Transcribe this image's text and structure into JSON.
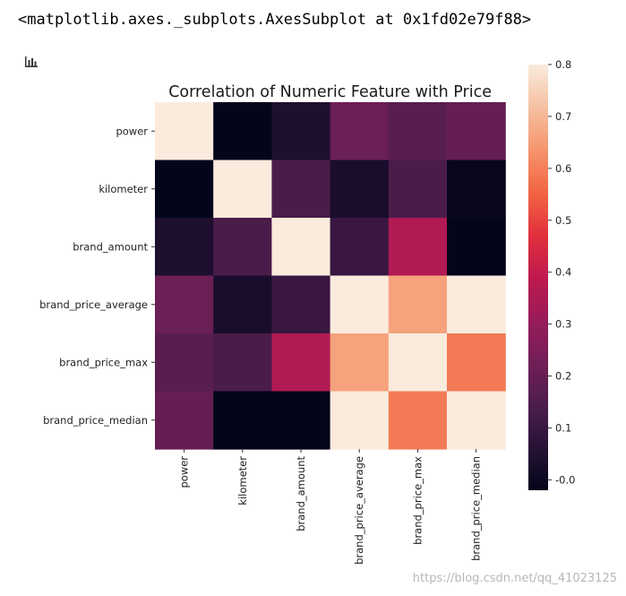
{
  "output_repr": "<matplotlib.axes._subplots.AxesSubplot at 0x1fd02e79f88>",
  "icons": {
    "plot_icon": "bar-chart-icon"
  },
  "watermark": "https://blog.csdn.net/qq_41023125",
  "chart_data": {
    "type": "heatmap",
    "title": "Correlation of Numeric Feature with Price",
    "row_labels": [
      "power",
      "kilometer",
      "brand_amount",
      "brand_price_average",
      "brand_price_max",
      "brand_price_median"
    ],
    "col_labels": [
      "power",
      "kilometer",
      "brand_amount",
      "brand_price_average",
      "brand_price_max",
      "brand_price_median"
    ],
    "values": [
      [
        0.8,
        -0.02,
        0.04,
        0.21,
        0.17,
        0.2
      ],
      [
        -0.02,
        0.8,
        0.14,
        0.03,
        0.14,
        -0.01
      ],
      [
        0.04,
        0.14,
        0.8,
        0.1,
        0.36,
        -0.02
      ],
      [
        0.21,
        0.03,
        0.1,
        0.8,
        0.66,
        0.8
      ],
      [
        0.17,
        0.14,
        0.36,
        0.66,
        0.8,
        0.59
      ],
      [
        0.2,
        -0.02,
        -0.02,
        0.8,
        0.59,
        0.8
      ]
    ],
    "vmin": -0.02,
    "vmax": 0.8,
    "colormap": "rocket",
    "colorbar_ticks": [
      "0.8",
      "0.7",
      "0.6",
      "0.5",
      "0.4",
      "0.3",
      "0.2",
      "0.1",
      "-0.0"
    ],
    "colorbar_tick_values": [
      0.8,
      0.7,
      0.6,
      0.5,
      0.4,
      0.3,
      0.2,
      0.1,
      0.0
    ]
  }
}
